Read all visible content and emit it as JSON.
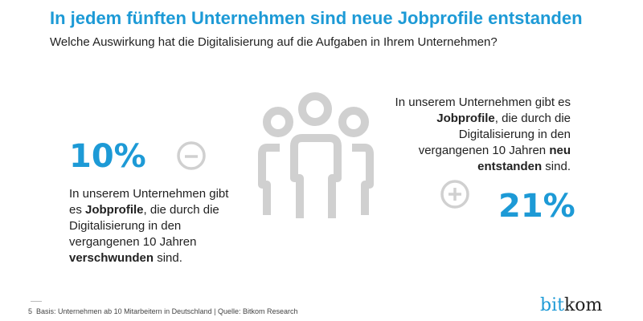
{
  "title": "In jedem fünften Unternehmen sind neue Jobprofile entstanden",
  "subtitle": "Welche Auswirkung hat die Digitalisierung auf die Aufgaben in Ihrem Unternehmen?",
  "left": {
    "value": "10%",
    "pre": "In unserem Unternehmen gibt es ",
    "bold1": "Jobprofile",
    "mid": ", die durch die Digitalisierung in den vergangenen 10 Jahren ",
    "bold2": "verschwunden",
    "post": " sind.",
    "icon": "minus-circle-icon"
  },
  "right": {
    "value": "21%",
    "pre": "In unserem Unternehmen gibt es ",
    "bold1": "Jobprofile",
    "mid": ", die durch die Digitalisierung in den vergangenen 10 Jahren ",
    "bold2": "neu entstanden",
    "post": " sind.",
    "icon": "plus-circle-icon"
  },
  "footer": {
    "page": "5",
    "text": "Basis: Unternehmen ab 10 Mitarbeitern in Deutschland | Quelle: Bitkom Research"
  },
  "logo": {
    "part1": "bit",
    "part2": "kom"
  },
  "colors": {
    "accent": "#1d9ad6",
    "icon": "#d0d0d0"
  }
}
